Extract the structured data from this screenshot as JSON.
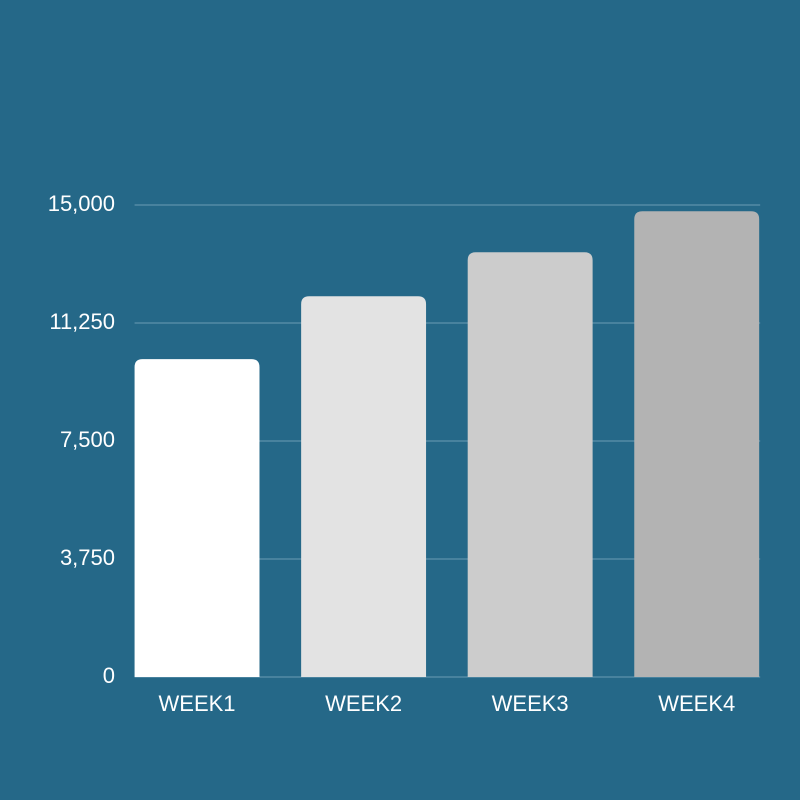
{
  "chart_data": {
    "type": "bar",
    "categories": [
      "WEEK1",
      "WEEK2",
      "WEEK3",
      "WEEK4"
    ],
    "values": [
      10100,
      12100,
      13500,
      14800
    ],
    "colors": [
      "#ffffff",
      "#e3e3e3",
      "#cccccc",
      "#b3b3b3"
    ],
    "ylim": [
      0,
      15000
    ],
    "yticks": [
      0,
      {
        "value": 3750,
        "label": "3,750"
      },
      {
        "value": 7500,
        "label": "7,500"
      },
      {
        "value": 11250,
        "label": "11,250"
      },
      {
        "value": 15000,
        "label": "15,000"
      }
    ],
    "grid": true
  }
}
